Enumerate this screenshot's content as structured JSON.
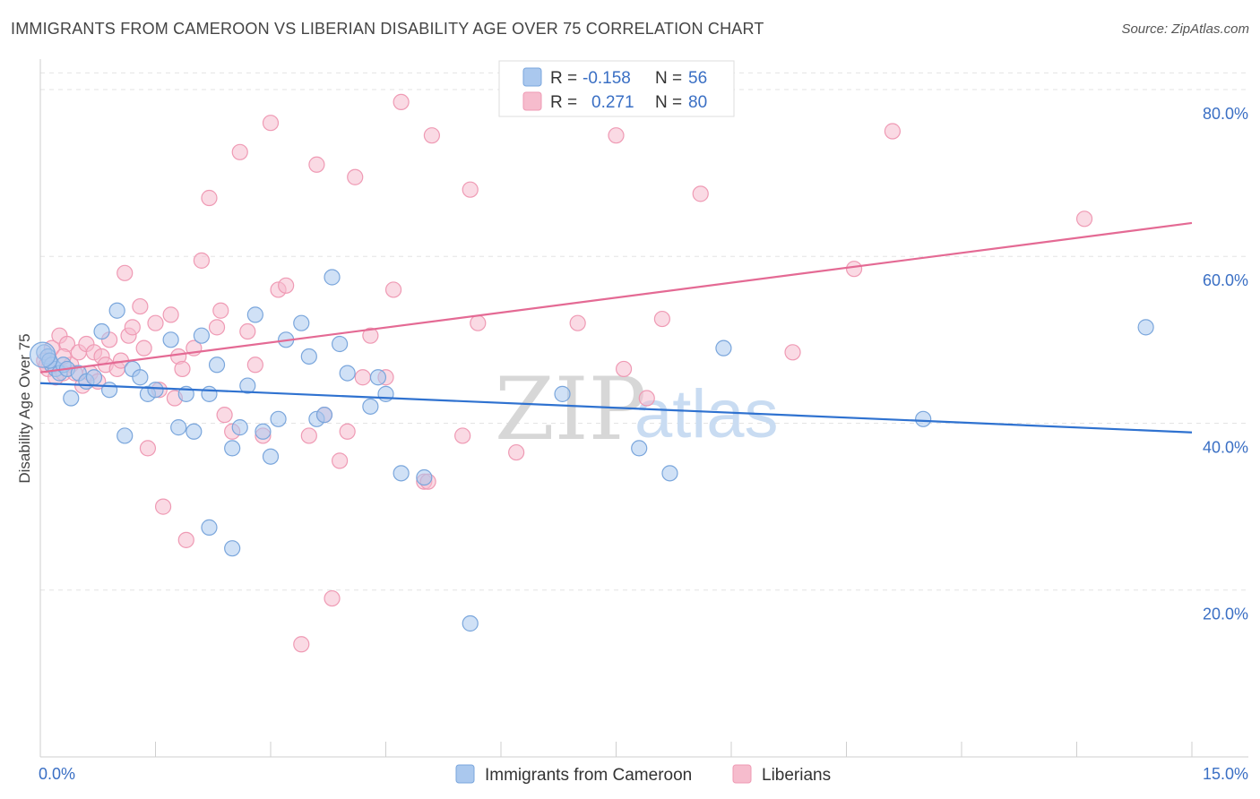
{
  "title": "IMMIGRANTS FROM CAMEROON VS LIBERIAN DISABILITY AGE OVER 75 CORRELATION CHART",
  "source": "Source: ZipAtlas.com",
  "watermark": {
    "part1": "ZIP",
    "part2": "atlas"
  },
  "colors": {
    "blue_fill": "#aac8ee",
    "blue_stroke": "#7aa6dc",
    "blue_line": "#2f72d0",
    "pink_fill": "#f6bccd",
    "pink_stroke": "#ef9ab4",
    "pink_line": "#e46a94",
    "tick_text": "#3a6fc4",
    "grid": "#e3e3e3"
  },
  "legend": {
    "r_label": "R =",
    "n_label": "N =",
    "rows": [
      {
        "r": "-0.158",
        "n": "56"
      },
      {
        "r": "0.271",
        "n": "80"
      }
    ]
  },
  "chart_data": {
    "type": "scatter",
    "title": "IMMIGRANTS FROM CAMEROON VS LIBERIAN DISABILITY AGE OVER 75 CORRELATION CHART",
    "xlabel": "",
    "ylabel": "Disability Age Over 75",
    "xlim": [
      0,
      15
    ],
    "ylim": [
      0,
      83
    ],
    "x_tick_labels": [
      "0.0%",
      "15.0%"
    ],
    "y_ticks": [
      20,
      40,
      60,
      80
    ],
    "y_tick_labels": [
      "20.0%",
      "40.0%",
      "60.0%",
      "80.0%"
    ],
    "grid": true,
    "legend_position": "top-center",
    "series": [
      {
        "name": "Immigrants from Cameroon",
        "r": -0.158,
        "n": 56,
        "trend": {
          "x": [
            0,
            15
          ],
          "y": [
            44.8,
            38.9
          ]
        },
        "points": [
          [
            0.05,
            48.5
          ],
          [
            0.1,
            48.0
          ],
          [
            0.15,
            47.0
          ],
          [
            0.2,
            46.5
          ],
          [
            0.25,
            46.0
          ],
          [
            0.3,
            47.0
          ],
          [
            0.35,
            46.5
          ],
          [
            0.4,
            43.0
          ],
          [
            0.5,
            46.0
          ],
          [
            0.6,
            45.0
          ],
          [
            0.7,
            45.5
          ],
          [
            0.8,
            51.0
          ],
          [
            0.9,
            44.0
          ],
          [
            1.0,
            53.5
          ],
          [
            1.1,
            38.5
          ],
          [
            1.2,
            46.5
          ],
          [
            1.3,
            45.5
          ],
          [
            1.4,
            43.5
          ],
          [
            1.5,
            44.0
          ],
          [
            1.7,
            50.0
          ],
          [
            1.8,
            39.5
          ],
          [
            1.9,
            43.5
          ],
          [
            2.0,
            39.0
          ],
          [
            2.1,
            50.5
          ],
          [
            2.2,
            43.5
          ],
          [
            2.3,
            47.0
          ],
          [
            2.5,
            37.0
          ],
          [
            2.6,
            39.5
          ],
          [
            2.7,
            44.5
          ],
          [
            2.8,
            53.0
          ],
          [
            2.9,
            39.0
          ],
          [
            3.1,
            40.5
          ],
          [
            3.0,
            36.0
          ],
          [
            3.2,
            50.0
          ],
          [
            3.4,
            52.0
          ],
          [
            3.5,
            48.0
          ],
          [
            3.6,
            40.5
          ],
          [
            3.7,
            41.0
          ],
          [
            3.8,
            57.5
          ],
          [
            3.9,
            49.5
          ],
          [
            4.0,
            46.0
          ],
          [
            4.3,
            42.0
          ],
          [
            4.4,
            45.5
          ],
          [
            4.5,
            43.5
          ],
          [
            4.7,
            34.0
          ],
          [
            5.0,
            33.5
          ],
          [
            5.6,
            16.0
          ],
          [
            2.2,
            27.5
          ],
          [
            2.5,
            25.0
          ],
          [
            6.8,
            43.5
          ],
          [
            7.8,
            37.0
          ],
          [
            8.2,
            34.0
          ],
          [
            8.9,
            49.0
          ],
          [
            11.5,
            40.5
          ],
          [
            14.4,
            51.5
          ],
          [
            0.12,
            47.5
          ]
        ]
      },
      {
        "name": "Liberians",
        "r": 0.271,
        "n": 80,
        "trend": {
          "x": [
            0,
            15
          ],
          "y": [
            46.1,
            64.0
          ]
        },
        "points": [
          [
            0.05,
            47.5
          ],
          [
            0.1,
            46.5
          ],
          [
            0.15,
            49.0
          ],
          [
            0.2,
            45.5
          ],
          [
            0.25,
            50.5
          ],
          [
            0.3,
            46.0
          ],
          [
            0.35,
            49.5
          ],
          [
            0.4,
            47.0
          ],
          [
            0.45,
            46.0
          ],
          [
            0.5,
            48.5
          ],
          [
            0.55,
            44.5
          ],
          [
            0.6,
            49.5
          ],
          [
            0.65,
            46.0
          ],
          [
            0.7,
            48.5
          ],
          [
            0.75,
            45.0
          ],
          [
            0.8,
            48.0
          ],
          [
            0.85,
            47.0
          ],
          [
            0.9,
            50.0
          ],
          [
            1.0,
            46.5
          ],
          [
            1.05,
            47.5
          ],
          [
            1.1,
            58.0
          ],
          [
            1.15,
            50.5
          ],
          [
            1.2,
            51.5
          ],
          [
            1.3,
            54.0
          ],
          [
            1.35,
            49.0
          ],
          [
            1.4,
            37.0
          ],
          [
            1.5,
            52.0
          ],
          [
            1.55,
            44.0
          ],
          [
            1.6,
            30.0
          ],
          [
            1.7,
            53.0
          ],
          [
            1.75,
            43.0
          ],
          [
            1.8,
            48.0
          ],
          [
            1.85,
            46.5
          ],
          [
            1.9,
            26.0
          ],
          [
            2.0,
            49.0
          ],
          [
            2.1,
            59.5
          ],
          [
            2.2,
            67.0
          ],
          [
            2.3,
            51.5
          ],
          [
            2.35,
            53.5
          ],
          [
            2.4,
            41.0
          ],
          [
            2.5,
            39.0
          ],
          [
            2.6,
            72.5
          ],
          [
            2.7,
            51.0
          ],
          [
            2.8,
            47.0
          ],
          [
            2.9,
            38.5
          ],
          [
            3.0,
            76.0
          ],
          [
            3.1,
            56.0
          ],
          [
            3.2,
            56.5
          ],
          [
            3.4,
            13.5
          ],
          [
            3.5,
            38.5
          ],
          [
            3.6,
            71.0
          ],
          [
            3.7,
            41.0
          ],
          [
            3.8,
            19.0
          ],
          [
            3.9,
            35.5
          ],
          [
            4.0,
            39.0
          ],
          [
            4.1,
            69.5
          ],
          [
            4.2,
            45.5
          ],
          [
            4.3,
            50.5
          ],
          [
            4.5,
            45.5
          ],
          [
            4.6,
            56.0
          ],
          [
            4.7,
            78.5
          ],
          [
            5.0,
            33.0
          ],
          [
            5.05,
            33.0
          ],
          [
            5.1,
            74.5
          ],
          [
            5.5,
            38.5
          ],
          [
            5.6,
            68.0
          ],
          [
            5.7,
            52.0
          ],
          [
            6.2,
            36.5
          ],
          [
            7.0,
            52.0
          ],
          [
            7.5,
            74.5
          ],
          [
            7.6,
            46.5
          ],
          [
            7.9,
            43.0
          ],
          [
            8.1,
            52.5
          ],
          [
            8.6,
            67.5
          ],
          [
            9.8,
            48.5
          ],
          [
            10.6,
            58.5
          ],
          [
            11.1,
            75.0
          ],
          [
            13.6,
            64.5
          ],
          [
            0.08,
            47.0
          ],
          [
            0.3,
            48.0
          ]
        ]
      }
    ]
  }
}
